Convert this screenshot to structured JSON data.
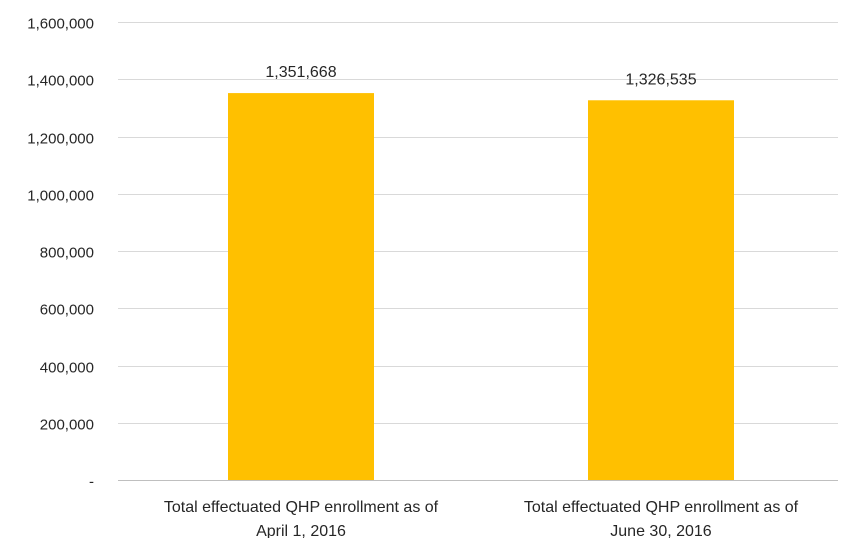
{
  "chart_data": {
    "type": "bar",
    "title": "",
    "xlabel": "",
    "ylabel": "",
    "categories": [
      [
        "Total effectuated QHP enrollment as of",
        "April 1, 2016"
      ],
      [
        "Total effectuated QHP enrollment as of",
        "June 30, 2016"
      ]
    ],
    "values": [
      1351668,
      1326535
    ],
    "data_labels": [
      "1,351,668",
      "1,326,535"
    ],
    "ylim": [
      0,
      1600000
    ],
    "yticks": [
      0,
      200000,
      400000,
      600000,
      800000,
      1000000,
      1200000,
      1400000,
      1600000
    ],
    "ytick_labels": [
      "-",
      "200,000",
      "400,000",
      "600,000",
      "800,000",
      "1,000,000",
      "1,200,000",
      "1,400,000",
      "1,600,000"
    ],
    "grid": true,
    "legend": "none",
    "colors": {
      "bar": "#FFC000",
      "grid": "#D9D9D9",
      "axis": "#BFBFBF",
      "text": "#262626"
    }
  }
}
